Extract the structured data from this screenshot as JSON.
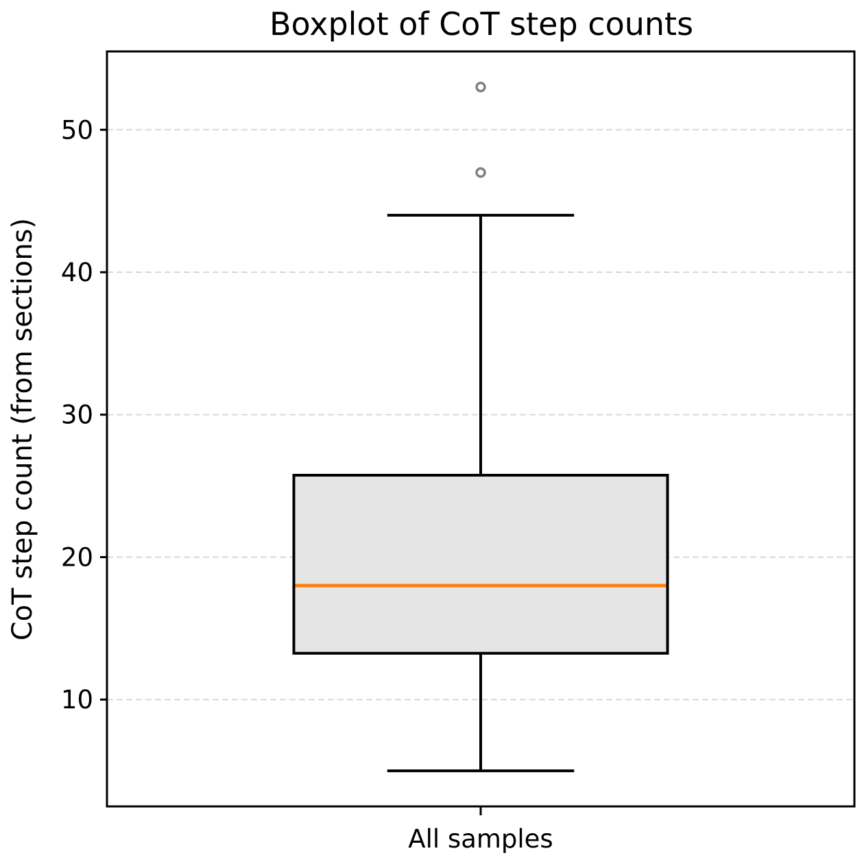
{
  "chart_data": {
    "type": "boxplot",
    "title": "Boxplot of CoT step counts",
    "xlabel": "",
    "ylabel": "CoT step count (from sections)",
    "categories": [
      "All samples"
    ],
    "boxes": [
      {
        "category": "All samples",
        "whisker_low": 5,
        "q1": 13.25,
        "median": 18,
        "q3": 25.75,
        "whisker_high": 44,
        "outliers": [
          47,
          53
        ]
      }
    ],
    "ylim": [
      2.5,
      55.5
    ],
    "yticks": [
      10,
      20,
      30,
      40,
      50
    ],
    "grid": {
      "y": true,
      "style": "dashed"
    },
    "colors": {
      "box_fill": "#e5e5e5",
      "box_edge": "#000000",
      "median": "#ff7f0e",
      "outlier": "#808080",
      "grid": "#d9d9d9"
    }
  }
}
